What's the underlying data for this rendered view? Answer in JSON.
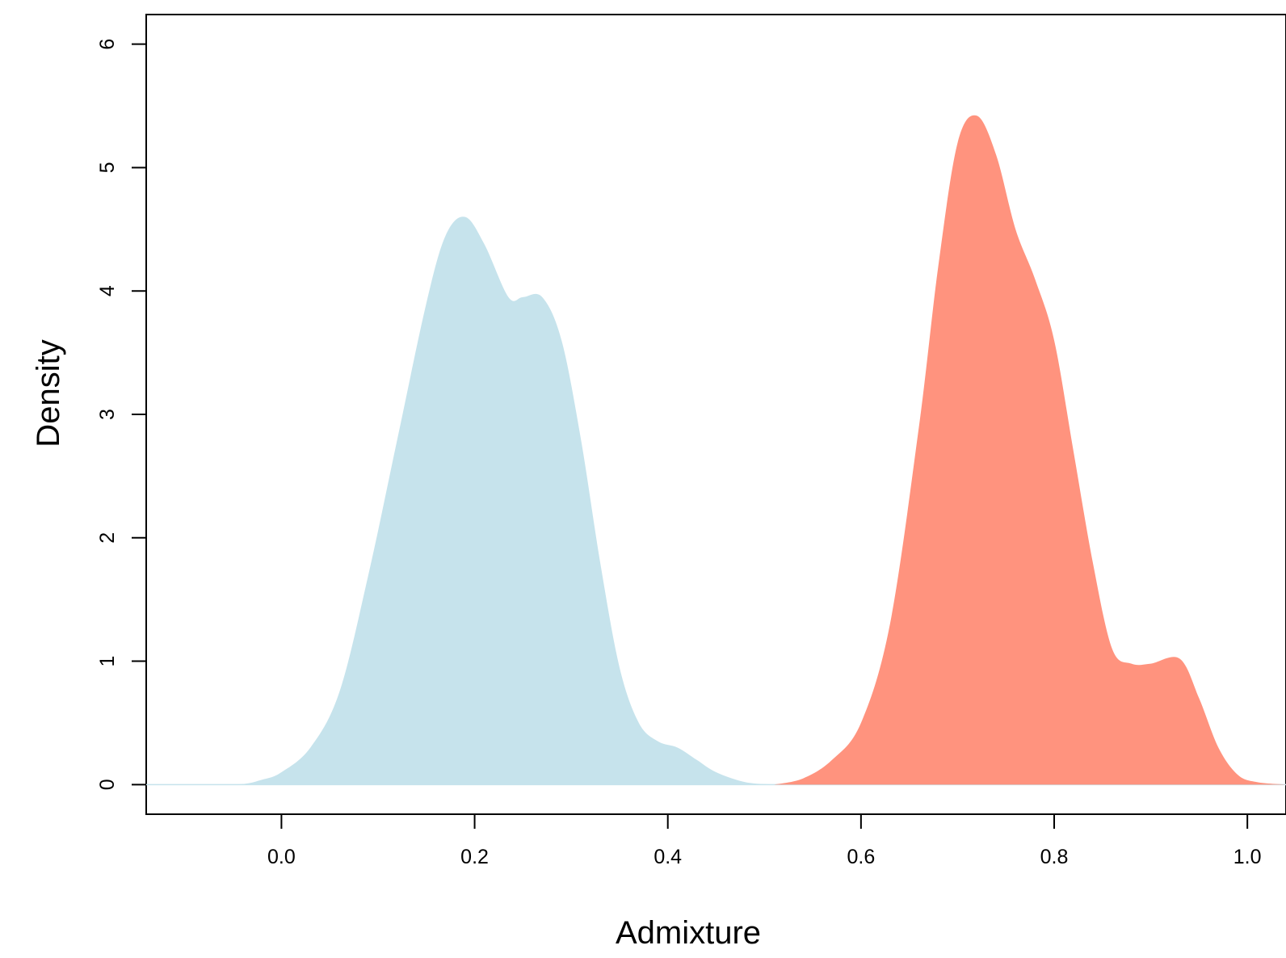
{
  "chart_data": {
    "type": "area",
    "title": "",
    "xlabel": "Admixture",
    "ylabel": "Density",
    "xlim": [
      -0.14,
      1.04
    ],
    "ylim": [
      -0.24,
      6.24
    ],
    "xticks": [
      "0.0",
      "0.2",
      "0.4",
      "0.6",
      "0.8",
      "1.0"
    ],
    "yticks": [
      "0",
      "1",
      "2",
      "3",
      "4",
      "5",
      "6"
    ],
    "grid": false,
    "legend": "none",
    "series": [
      {
        "color": "#c6e3ec",
        "x": [
          -0.14,
          -0.05,
          -0.02,
          0.0,
          0.03,
          0.06,
          0.09,
          0.12,
          0.15,
          0.17,
          0.19,
          0.21,
          0.235,
          0.25,
          0.27,
          0.29,
          0.31,
          0.33,
          0.35,
          0.37,
          0.39,
          0.41,
          0.43,
          0.45,
          0.48,
          0.51
        ],
        "y": [
          0.0,
          0.0,
          0.04,
          0.1,
          0.3,
          0.75,
          1.7,
          2.8,
          3.9,
          4.45,
          4.6,
          4.38,
          3.95,
          3.95,
          3.95,
          3.6,
          2.8,
          1.8,
          0.95,
          0.5,
          0.35,
          0.3,
          0.2,
          0.1,
          0.02,
          0.0
        ]
      },
      {
        "color": "#ff937e",
        "x": [
          0.51,
          0.54,
          0.57,
          0.6,
          0.63,
          0.66,
          0.68,
          0.7,
          0.72,
          0.74,
          0.76,
          0.78,
          0.8,
          0.82,
          0.84,
          0.86,
          0.88,
          0.9,
          0.93,
          0.95,
          0.97,
          0.99,
          1.01,
          1.04
        ],
        "y": [
          0.0,
          0.05,
          0.2,
          0.5,
          1.3,
          2.9,
          4.2,
          5.2,
          5.42,
          5.1,
          4.5,
          4.1,
          3.6,
          2.7,
          1.8,
          1.1,
          0.98,
          0.98,
          1.02,
          0.7,
          0.3,
          0.08,
          0.02,
          0.0
        ]
      }
    ]
  }
}
